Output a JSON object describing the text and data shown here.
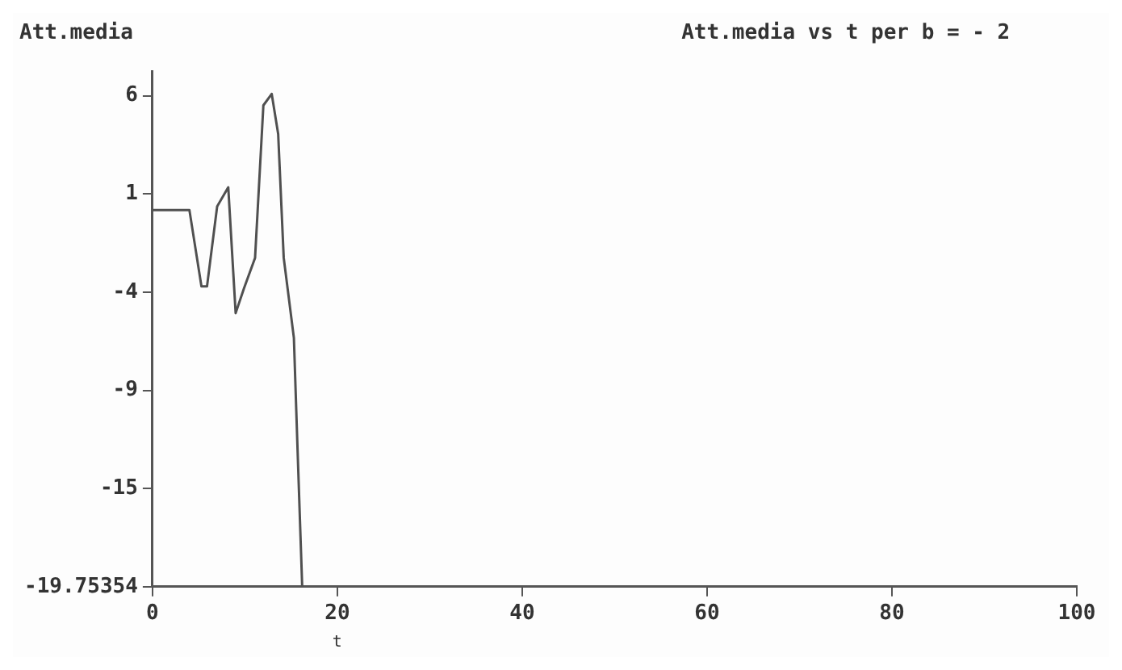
{
  "chart_data": {
    "type": "line",
    "title": "Att.media vs t per b = - 2",
    "xlabel": "t",
    "ylabel": "Att.media",
    "x": [
      0,
      4.0,
      5.3,
      5.9,
      7.0,
      8.2,
      9.0,
      9.9,
      11.1,
      12.0,
      12.9,
      13.6,
      14.2,
      15.3,
      15.7,
      16.2
    ],
    "values": [
      0,
      0,
      -4.0,
      -4.0,
      0.2,
      1.2,
      -5.4,
      -4.1,
      -2.5,
      5.5,
      6.1,
      4.0,
      -2.5,
      -6.7,
      -12.6,
      -19.75354
    ],
    "color": "#505050",
    "xlim": [
      0,
      100
    ],
    "xticks": [
      0,
      20,
      40,
      60,
      80,
      100
    ],
    "ylim": [
      -19.75354,
      7.3
    ],
    "yticks": [
      {
        "value": -19.75354,
        "label": "-19.75354"
      },
      {
        "value": -14.603,
        "label": "-15"
      },
      {
        "value": -9.452,
        "label": "-9"
      },
      {
        "value": -4.301,
        "label": "-4"
      },
      {
        "value": 0.849,
        "label": "1"
      },
      {
        "value": 6,
        "label": "6"
      }
    ],
    "grid": false,
    "legend": false,
    "marker": "none",
    "line_style": "solid"
  }
}
